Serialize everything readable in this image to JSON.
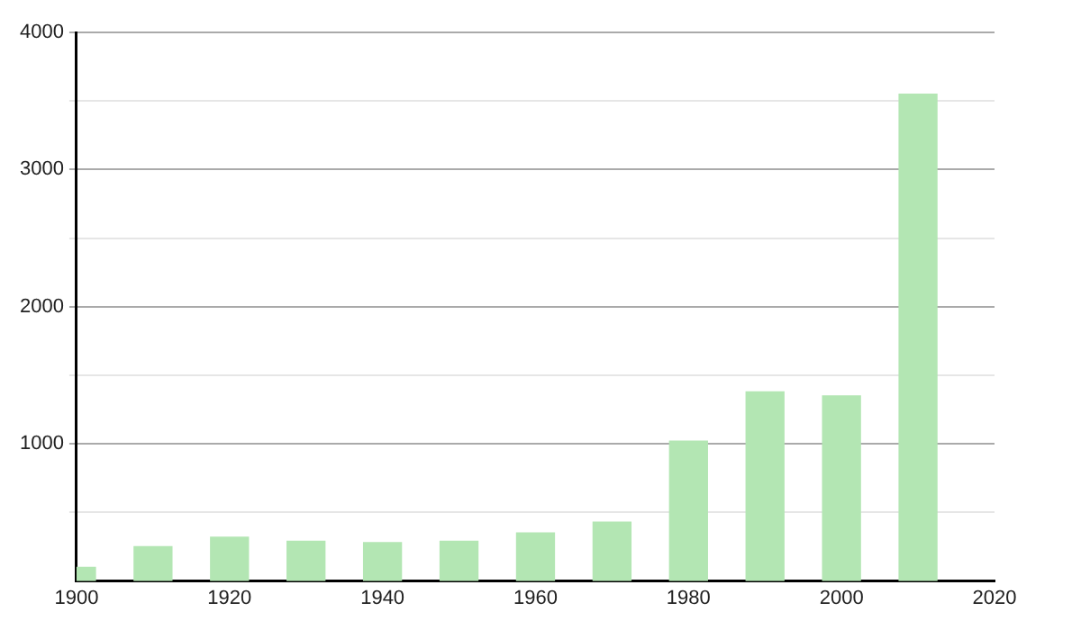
{
  "chart_data": {
    "type": "bar",
    "x": [
      1900,
      1910,
      1920,
      1930,
      1940,
      1950,
      1960,
      1970,
      1980,
      1990,
      2000,
      2010
    ],
    "values": [
      100,
      250,
      320,
      290,
      280,
      290,
      350,
      430,
      1020,
      1380,
      1350,
      3550
    ],
    "color": "#b3e6b3",
    "xlim": [
      1900,
      2020
    ],
    "xticks": [
      1900,
      1920,
      1940,
      1960,
      1980,
      2000,
      2020
    ],
    "ylim": [
      0,
      4000
    ],
    "yticks": [
      {
        "value": 500,
        "label": null
      },
      1000,
      {
        "value": 1500,
        "label": null
      },
      2000,
      {
        "value": 2500,
        "label": null
      },
      3000,
      {
        "value": 3500,
        "label": null
      },
      4000
    ],
    "grid": "y",
    "legend": false
  }
}
